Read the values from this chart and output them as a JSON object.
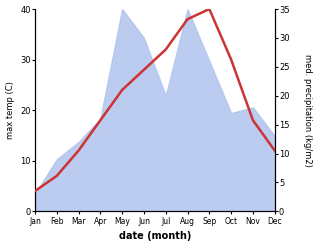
{
  "months": [
    "Jan",
    "Feb",
    "Mar",
    "Apr",
    "May",
    "Jun",
    "Jul",
    "Aug",
    "Sep",
    "Oct",
    "Nov",
    "Dec"
  ],
  "max_temp_C": [
    4,
    7,
    12,
    18,
    24,
    28,
    32,
    38,
    40,
    30,
    18,
    12
  ],
  "precipitation_mm": [
    3,
    9,
    12,
    16,
    35,
    30,
    20,
    35,
    26,
    17,
    18,
    13
  ],
  "temp_ylim": [
    0,
    40
  ],
  "temp_yticks": [
    0,
    10,
    20,
    30,
    40
  ],
  "precip_ylim": [
    0,
    35
  ],
  "precip_yticks": [
    0,
    5,
    10,
    15,
    20,
    25,
    30,
    35
  ],
  "temp_color": "#cc3333",
  "precip_fill_color": "#b0c4ee",
  "precip_fill_alpha": 0.85,
  "xlabel": "date (month)",
  "ylabel_left": "max temp (C)",
  "ylabel_right": "med. precipitation (kg/m2)",
  "xlabel_fontsize": 7,
  "ylabel_fontsize": 6,
  "tick_fontsize": 6,
  "xtick_fontsize": 5.5,
  "line_width": 1.8,
  "fig_width": 3.18,
  "fig_height": 2.47,
  "dpi": 100
}
